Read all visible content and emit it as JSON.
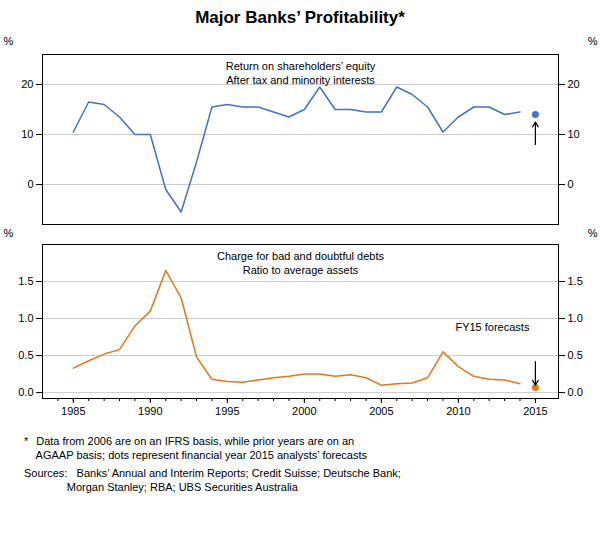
{
  "chart_data": [
    {
      "type": "line",
      "title": "Major Banks’ Profitability*",
      "subtitle": [
        "Return on shareholders’ equity",
        "After tax and minority interests"
      ],
      "x": [
        1985,
        1986,
        1987,
        1988,
        1989,
        1990,
        1991,
        1992,
        1993,
        1994,
        1995,
        1996,
        1997,
        1998,
        1999,
        2000,
        2001,
        2002,
        2003,
        2004,
        2005,
        2006,
        2007,
        2008,
        2009,
        2010,
        2011,
        2012,
        2013,
        2014
      ],
      "values": [
        10.5,
        16.5,
        16.0,
        13.5,
        10.0,
        10.0,
        -1.0,
        -5.5,
        4.5,
        15.5,
        16.0,
        15.5,
        15.5,
        14.5,
        13.5,
        15.0,
        19.5,
        15.0,
        15.0,
        14.5,
        14.5,
        19.5,
        18.0,
        15.5,
        10.5,
        13.5,
        15.5,
        15.5,
        14.0,
        14.5
      ],
      "color": "#4472C4",
      "forecast": {
        "x": 2015,
        "y": 14.0
      },
      "arrow": {
        "x": 2015,
        "from": 8.0,
        "to": 12.5
      },
      "y_label": "%",
      "xlim": [
        1983,
        2016.5
      ],
      "ylim": [
        -8,
        26
      ],
      "yticks": [
        0,
        10,
        20
      ],
      "grid": true,
      "tick_labels": "y"
    },
    {
      "type": "line",
      "subtitle": [
        "Charge for bad and doubtful debts",
        "Ratio to average assets"
      ],
      "x": [
        1985,
        1986,
        1987,
        1988,
        1989,
        1990,
        1991,
        1992,
        1993,
        1994,
        1995,
        1996,
        1997,
        1998,
        1999,
        2000,
        2001,
        2002,
        2003,
        2004,
        2005,
        2006,
        2007,
        2008,
        2009,
        2010,
        2011,
        2012,
        2013,
        2014
      ],
      "values": [
        0.33,
        0.43,
        0.52,
        0.58,
        0.9,
        1.1,
        1.65,
        1.28,
        0.48,
        0.18,
        0.15,
        0.14,
        0.17,
        0.2,
        0.22,
        0.25,
        0.25,
        0.22,
        0.24,
        0.2,
        0.1,
        0.12,
        0.13,
        0.2,
        0.55,
        0.35,
        0.22,
        0.18,
        0.17,
        0.12
      ],
      "color": "#E07820",
      "forecast": {
        "x": 2015,
        "y": 0.07,
        "label": "FY15 forecasts"
      },
      "arrow": {
        "x": 2015,
        "from": 0.42,
        "to": 0.1
      },
      "y_label": "%",
      "xlim": [
        1983,
        2016.5
      ],
      "xticks": [
        1985,
        1990,
        1995,
        2000,
        2005,
        2010,
        2015
      ],
      "minor_xticks": [
        1984,
        1985,
        1986,
        1987,
        1988,
        1989,
        1990,
        1991,
        1992,
        1993,
        1994,
        1995,
        1996,
        1997,
        1998,
        1999,
        2000,
        2001,
        2002,
        2003,
        2004,
        2005,
        2006,
        2007,
        2008,
        2009,
        2010,
        2011,
        2012,
        2013,
        2014,
        2015
      ],
      "ylim": [
        -0.08,
        2.0
      ],
      "yticks": [
        {
          "value": 0.0,
          "label": "0.0"
        },
        0.5,
        {
          "value": 1.0,
          "label": "1.0"
        },
        1.5
      ],
      "grid": true,
      "footnote_marker": "*",
      "footnotes": [
        "    Data from 2006 are on an IFRS basis, while prior years are on an",
        "    AGAAP basis; dots represent financial year 2015 analysts’ forecasts",
        "Sources:   Banks’ Annual and Interim Reports; Credit Suisse; Deutsche Bank;",
        "              Morgan Stanley; RBA; UBS Securities Australia"
      ]
    }
  ]
}
